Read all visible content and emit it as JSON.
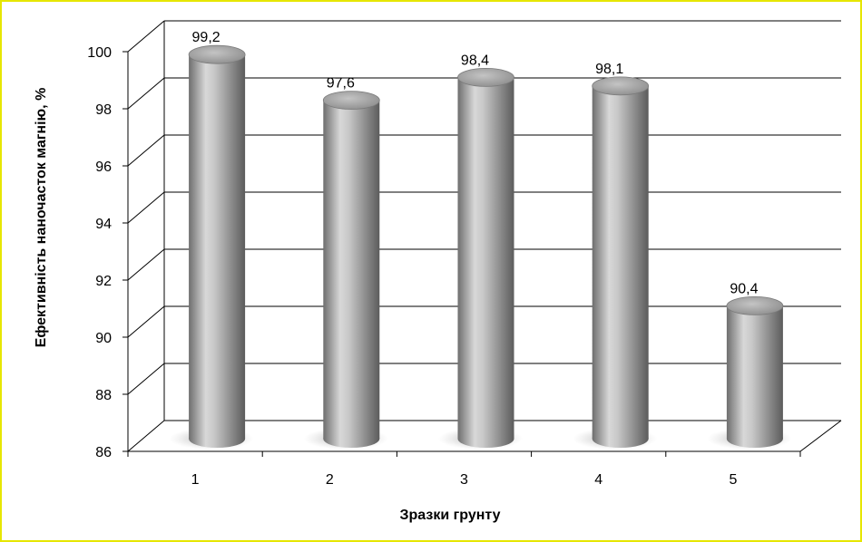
{
  "chart_data": {
    "type": "bar",
    "style": "3d-cylinder",
    "categories": [
      "1",
      "2",
      "3",
      "4",
      "5"
    ],
    "values": [
      99.2,
      97.6,
      98.4,
      98.1,
      90.4
    ],
    "data_labels": [
      "99,2",
      "97,6",
      "98,4",
      "98,1",
      "90,4"
    ],
    "xlabel": "Зразки грунту",
    "ylabel": "Ефективність наночасток  магнію, %",
    "ylim": [
      86,
      100
    ],
    "yticks": [
      "86",
      "88",
      "90",
      "92",
      "94",
      "96",
      "98",
      "100"
    ],
    "grid": true,
    "legend": "none",
    "colors": {
      "bar": "#9a9a9a",
      "bar_light": "#e0e0e0",
      "bar_dark": "#5a5a5a",
      "grid": "#000000",
      "frame": "#e6e600"
    }
  }
}
